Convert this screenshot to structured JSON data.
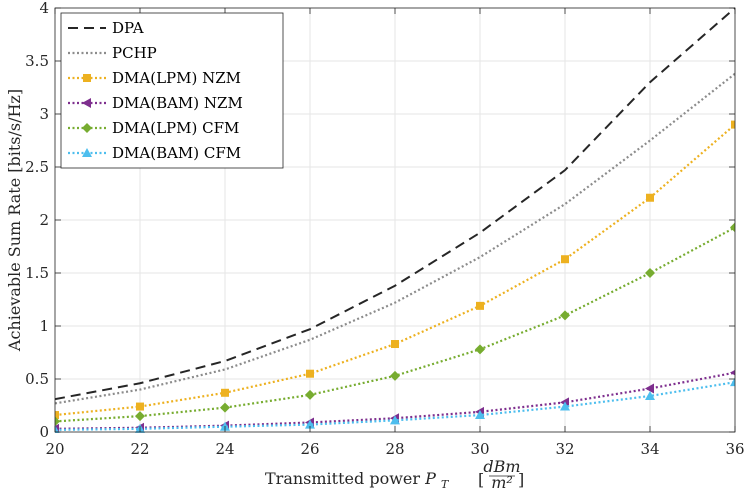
{
  "chart_data": {
    "type": "line",
    "title": "",
    "xlabel": "Transmitted power P_T [dBm/m²]",
    "xlabel_parts": {
      "prefix": "Transmitted power ",
      "symbol": "P",
      "subscript": "T",
      "unit_numerator": "dBm",
      "unit_denominator": "m²"
    },
    "ylabel": "Achievable Sum Rate [bits/s/Hz]",
    "xlim": [
      20,
      36
    ],
    "ylim": [
      0,
      4
    ],
    "grid": true,
    "legend_position": "top-left",
    "x_ticks": [
      20,
      22,
      24,
      26,
      28,
      30,
      32,
      34,
      36
    ],
    "x_tick_labels": [
      "20",
      "22",
      "24",
      "26",
      "28",
      "30",
      "32",
      "34",
      "36"
    ],
    "y_ticks": [
      0,
      0.5,
      1,
      1.5,
      2,
      2.5,
      3,
      3.5,
      4
    ],
    "y_tick_labels": [
      "0",
      "0.5",
      "1",
      "1.5",
      "2",
      "2.5",
      "3",
      "3.5",
      "4"
    ],
    "x": [
      20,
      22,
      24,
      26,
      28,
      30,
      32,
      34,
      36
    ],
    "series": [
      {
        "name": "DPA",
        "color": "#262626",
        "dash": "10,6",
        "marker": "none",
        "values": [
          0.31,
          0.46,
          0.67,
          0.97,
          1.38,
          1.88,
          2.47,
          3.3,
          4.0
        ]
      },
      {
        "name": "PCHP",
        "color": "#8c8c8c",
        "dash": "2,2.5",
        "marker": "none",
        "values": [
          0.27,
          0.4,
          0.59,
          0.87,
          1.22,
          1.65,
          2.15,
          2.75,
          3.38
        ]
      },
      {
        "name": "DMA(LPM) NZM",
        "color": "#EDB120",
        "dash": "2,2.5",
        "marker": "square",
        "values": [
          0.16,
          0.24,
          0.37,
          0.55,
          0.83,
          1.19,
          1.63,
          2.21,
          2.9
        ]
      },
      {
        "name": "DMA(BAM) NZM",
        "color": "#7E2F8E",
        "dash": "2,2.5",
        "marker": "triangle-left",
        "values": [
          0.03,
          0.04,
          0.06,
          0.09,
          0.13,
          0.19,
          0.28,
          0.41,
          0.56
        ]
      },
      {
        "name": "DMA(LPM) CFM",
        "color": "#77AC30",
        "dash": "2,2.5",
        "marker": "diamond",
        "values": [
          0.1,
          0.15,
          0.23,
          0.35,
          0.53,
          0.78,
          1.1,
          1.5,
          1.93
        ]
      },
      {
        "name": "DMA(BAM) CFM",
        "color": "#4DBEEE",
        "dash": "2,2.5",
        "marker": "triangle-up",
        "values": [
          0.02,
          0.03,
          0.05,
          0.07,
          0.11,
          0.16,
          0.24,
          0.34,
          0.47
        ]
      }
    ]
  }
}
